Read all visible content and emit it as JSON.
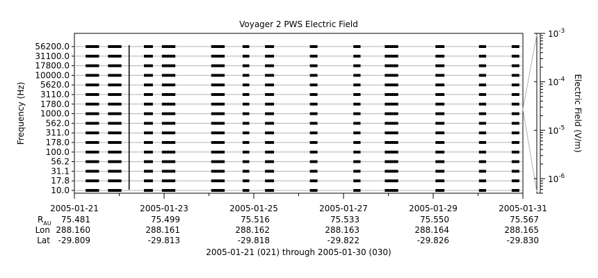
{
  "chart_data": {
    "type": "line",
    "title": "Voyager 2 PWS Electric Field",
    "ylabel": "Frequency (Hz)",
    "ylabel_right": "Electric Field (V/m)",
    "xlabel": "2005-01-21 (021) through 2005-01-30 (030)",
    "frequency_channels": [
      "56200.0",
      "31100.0",
      "17800.0",
      "10000.0",
      "5620.0",
      "3110.0",
      "1780.0",
      "1000.0",
      "562.0",
      "311.0",
      "178.0",
      "100.0",
      "56.2",
      "31.1",
      "17.8",
      "10.0"
    ],
    "x_range_days": [
      "2005-01-21",
      "2005-01-31"
    ],
    "x_tick_labels": [
      "2005-01-21",
      "2005-01-23",
      "2005-01-25",
      "2005-01-27",
      "2005-01-29",
      "2005-01-31"
    ],
    "colorbar": {
      "scale": "log",
      "range": [
        5e-07,
        0.001
      ],
      "tick_labels": [
        {
          "base": "10",
          "exp": "-3"
        },
        {
          "base": "10",
          "exp": "-4"
        },
        {
          "base": "10",
          "exp": "-5"
        },
        {
          "base": "10",
          "exp": "-6"
        }
      ]
    },
    "data_segments_days_since_start": [
      [
        0.25,
        0.55
      ],
      [
        0.75,
        1.05
      ],
      [
        1.55,
        1.75
      ],
      [
        1.95,
        2.25
      ],
      [
        3.05,
        3.35
      ],
      [
        3.75,
        3.9
      ],
      [
        4.25,
        4.45
      ],
      [
        5.25,
        5.42
      ],
      [
        6.22,
        6.38
      ],
      [
        6.92,
        7.22
      ],
      [
        8.05,
        8.25
      ],
      [
        9.02,
        9.18
      ],
      [
        9.75,
        9.92
      ]
    ],
    "spike_positions_days": [
      1.22
    ],
    "ephemeris": {
      "rows": [
        {
          "label": "R",
          "sub": "AU",
          "values": [
            "75.481",
            "75.499",
            "75.516",
            "75.533",
            "75.550",
            "75.567"
          ]
        },
        {
          "label": "Lon",
          "values": [
            "288.160",
            "288.161",
            "288.162",
            "288.163",
            "288.164",
            "288.165"
          ]
        },
        {
          "label": "Lat",
          "values": [
            "-29.809",
            "-29.813",
            "-29.818",
            "-29.822",
            "-29.826",
            "-29.830"
          ]
        }
      ]
    }
  }
}
